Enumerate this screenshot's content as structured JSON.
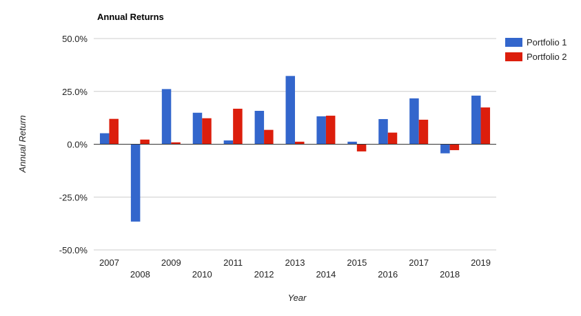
{
  "chart_data": {
    "type": "bar",
    "title": "Annual Returns",
    "xlabel": "Year",
    "ylabel": "Annual Return",
    "categories": [
      "2007",
      "2008",
      "2009",
      "2010",
      "2011",
      "2012",
      "2013",
      "2014",
      "2015",
      "2016",
      "2017",
      "2018",
      "2019"
    ],
    "series": [
      {
        "name": "Portfolio 1",
        "color": "#3366cc",
        "values": [
          5.2,
          -36.6,
          26.1,
          14.9,
          1.8,
          15.8,
          32.3,
          13.2,
          1.2,
          11.9,
          21.7,
          -4.3,
          23.0
        ]
      },
      {
        "name": "Portfolio 2",
        "color": "#dc1e0c",
        "values": [
          12.0,
          2.2,
          0.9,
          12.3,
          16.8,
          6.8,
          1.2,
          13.5,
          -3.4,
          5.5,
          11.6,
          -2.8,
          17.4
        ]
      }
    ],
    "ylim": [
      -50,
      50
    ],
    "yticks": [
      50,
      25,
      0,
      -25,
      -50
    ],
    "ytick_labels": [
      "50.0%",
      "25.0%",
      "0.0%",
      "-25.0%",
      "-50.0%"
    ],
    "grid": true,
    "legend": "right"
  }
}
